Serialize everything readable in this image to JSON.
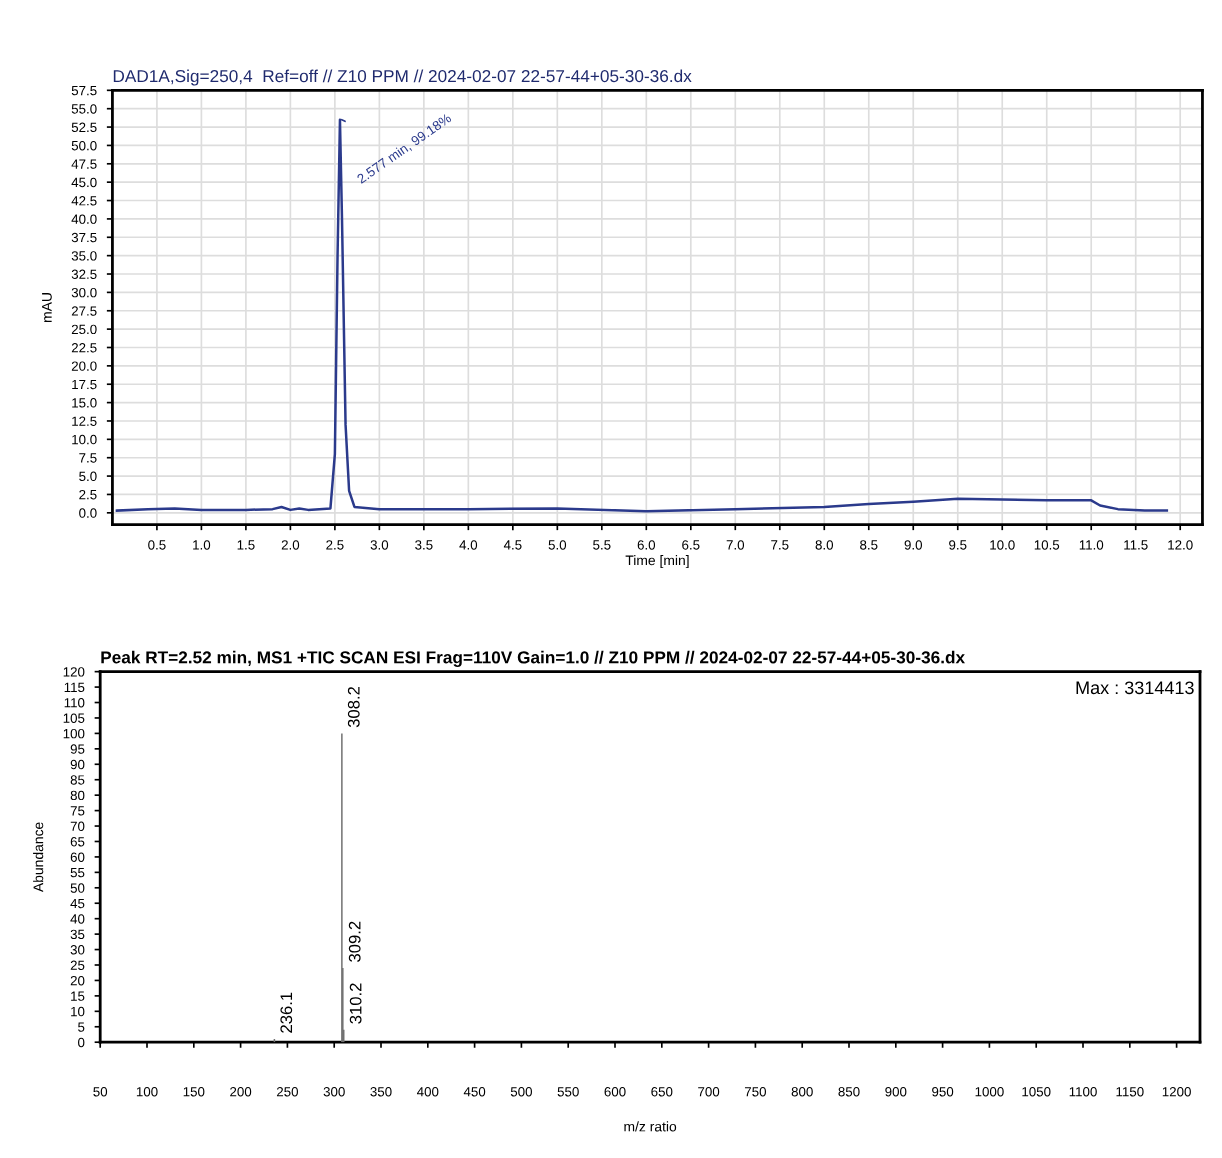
{
  "chart_data": [
    {
      "type": "line",
      "title": "DAD1A,Sig=250,4  Ref=off // Z10 PPM // 2024-02-07 22-57-44+05-30-36.dx",
      "xlabel": "Time [min]",
      "ylabel": "mAU",
      "series": [
        {
          "color": "#2b3a8c",
          "x": [
            0.05,
            0.4,
            0.7,
            1.0,
            1.5,
            1.8,
            1.9,
            2.0,
            2.1,
            2.2,
            2.45,
            2.5,
            2.53,
            2.557,
            2.58,
            2.62,
            2.66,
            2.72,
            3.0,
            4.0,
            5.0,
            6.0,
            7.0,
            8.0,
            8.5,
            9.0,
            9.5,
            10.0,
            10.5,
            11.0,
            11.1,
            11.3,
            11.6,
            11.85
          ],
          "values": [
            0.3,
            0.5,
            0.6,
            0.4,
            0.4,
            0.5,
            0.8,
            0.4,
            0.6,
            0.4,
            0.6,
            8,
            35,
            53.5,
            40,
            12,
            3,
            0.8,
            0.5,
            0.5,
            0.6,
            0.2,
            0.5,
            0.8,
            1.2,
            1.5,
            1.9,
            1.8,
            1.7,
            1.7,
            1.0,
            0.5,
            0.3,
            0.3
          ]
        }
      ],
      "annotations": [
        {
          "text": "2.577 min, 99.18%",
          "x": 2.577,
          "y": 53.5
        }
      ],
      "xlim": [
        0.0,
        12.25
      ],
      "ylim": [
        -1.6,
        57.5
      ],
      "xticks": [
        {
          "value": 0.5,
          "label": "0.5"
        },
        {
          "value": 1.0,
          "label": "1.0"
        },
        {
          "value": 1.5,
          "label": "1.5"
        },
        {
          "value": 2.0,
          "label": "2.0"
        },
        {
          "value": 2.5,
          "label": "2.5"
        },
        {
          "value": 3.0,
          "label": "3.0"
        },
        {
          "value": 3.5,
          "label": "3.5"
        },
        {
          "value": 4.0,
          "label": "4.0"
        },
        {
          "value": 4.5,
          "label": "4.5"
        },
        {
          "value": 5.0,
          "label": "5.0"
        },
        {
          "value": 5.5,
          "label": "5.5"
        },
        {
          "value": 6.0,
          "label": "6.0"
        },
        {
          "value": 6.5,
          "label": "6.5"
        },
        {
          "value": 7.0,
          "label": "7.0"
        },
        {
          "value": 7.5,
          "label": "7.5"
        },
        {
          "value": 8.0,
          "label": "8.0"
        },
        {
          "value": 8.5,
          "label": "8.5"
        },
        {
          "value": 9.0,
          "label": "9.0"
        },
        {
          "value": 9.5,
          "label": "9.5"
        },
        {
          "value": 10.0,
          "label": "10.0"
        },
        {
          "value": 10.5,
          "label": "10.5"
        },
        {
          "value": 11.0,
          "label": "11.0"
        },
        {
          "value": 11.5,
          "label": "11.5"
        },
        {
          "value": 12.0,
          "label": "12.0"
        }
      ],
      "yticks": [
        {
          "value": 0,
          "label": "0.0"
        },
        {
          "value": 2.5,
          "label": "2.5"
        },
        {
          "value": 5,
          "label": "5.0"
        },
        {
          "value": 7.5,
          "label": "7.5"
        },
        {
          "value": 10,
          "label": "10.0"
        },
        {
          "value": 12.5,
          "label": "12.5"
        },
        {
          "value": 15,
          "label": "15.0"
        },
        {
          "value": 17.5,
          "label": "17.5"
        },
        {
          "value": 20,
          "label": "20.0"
        },
        {
          "value": 22.5,
          "label": "22.5"
        },
        {
          "value": 25,
          "label": "25.0"
        },
        {
          "value": 27.5,
          "label": "27.5"
        },
        {
          "value": 30,
          "label": "30.0"
        },
        {
          "value": 32.5,
          "label": "32.5"
        },
        {
          "value": 35,
          "label": "35.0"
        },
        {
          "value": 37.5,
          "label": "37.5"
        },
        {
          "value": 40,
          "label": "40.0"
        },
        {
          "value": 42.5,
          "label": "42.5"
        },
        {
          "value": 45,
          "label": "45.0"
        },
        {
          "value": 47.5,
          "label": "47.5"
        },
        {
          "value": 50,
          "label": "50.0"
        },
        {
          "value": 52.5,
          "label": "52.5"
        },
        {
          "value": 55,
          "label": "55.0"
        },
        {
          "value": 57.5,
          "label": "57.5"
        }
      ],
      "grid": true
    },
    {
      "type": "bar",
      "title": "Peak RT=2.52 min, MS1 +TIC SCAN ESI Frag=110V Gain=1.0 // Z10 PPM // 2024-02-07 22-57-44+05-30-36.dx",
      "xlabel": "m/z ratio",
      "ylabel": "Abundance",
      "x": [
        236.1,
        308.2,
        309.2,
        310.2
      ],
      "values": [
        1,
        100,
        24,
        4
      ],
      "color": "#707070",
      "annotations": [
        {
          "text": "236.1",
          "x": 236.1,
          "y": 1
        },
        {
          "text": "308.2",
          "x": 308.2,
          "y": 100
        },
        {
          "text": "309.2",
          "x": 309.2,
          "y": 24
        },
        {
          "text": "310.2",
          "x": 310.2,
          "y": 4
        },
        "Max : 3314413"
      ],
      "xlim": [
        50,
        1225
      ],
      "ylim": [
        0,
        120
      ],
      "xticks": [
        50,
        100,
        150,
        200,
        250,
        300,
        350,
        400,
        450,
        500,
        550,
        600,
        650,
        700,
        750,
        800,
        850,
        900,
        950,
        1000,
        1050,
        1100,
        1150,
        1200
      ],
      "yticks": [
        0,
        5,
        10,
        15,
        20,
        25,
        30,
        35,
        40,
        45,
        50,
        55,
        60,
        65,
        70,
        75,
        80,
        85,
        90,
        95,
        100,
        105,
        110,
        115,
        120
      ]
    }
  ]
}
